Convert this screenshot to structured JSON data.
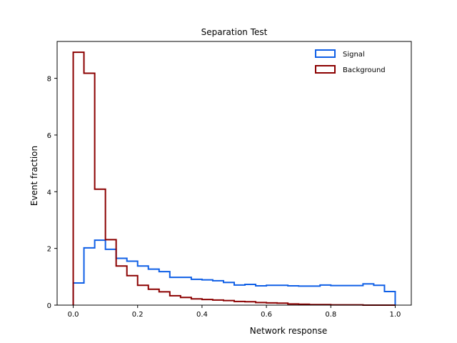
{
  "chart_data": {
    "type": "histogram-step",
    "title": "Separation Test",
    "xlabel": "Network response",
    "ylabel": "Event fraction",
    "xlim": [
      -0.05,
      1.05
    ],
    "ylim": [
      0,
      9.3
    ],
    "xticks": [
      0.0,
      0.2,
      0.4,
      0.6,
      0.8,
      1.0
    ],
    "xtick_labels": [
      "0.0",
      "0.2",
      "0.4",
      "0.6",
      "0.8",
      "1.0"
    ],
    "yticks": [
      0,
      2,
      4,
      6,
      8
    ],
    "ytick_labels": [
      "0",
      "2",
      "4",
      "6",
      "8"
    ],
    "grid": false,
    "legend_position": "top-right",
    "bin_edges": [
      0,
      0.0333,
      0.0667,
      0.1,
      0.1333,
      0.1667,
      0.2,
      0.2333,
      0.2667,
      0.3,
      0.3333,
      0.3667,
      0.4,
      0.4333,
      0.4667,
      0.5,
      0.5333,
      0.5667,
      0.6,
      0.6333,
      0.6667,
      0.7,
      0.7333,
      0.7667,
      0.8,
      0.8333,
      0.8667,
      0.9,
      0.9333,
      0.9667,
      1.0
    ],
    "series": [
      {
        "name": "Signal",
        "color": "#0f5fe6",
        "values": [
          0.78,
          2.02,
          2.29,
          1.97,
          1.65,
          1.55,
          1.38,
          1.27,
          1.18,
          0.98,
          0.98,
          0.91,
          0.89,
          0.86,
          0.8,
          0.71,
          0.73,
          0.68,
          0.7,
          0.7,
          0.68,
          0.67,
          0.67,
          0.71,
          0.69,
          0.69,
          0.69,
          0.75,
          0.7,
          0.48
        ]
      },
      {
        "name": "Background",
        "color": "#8b0000",
        "values": [
          8.92,
          8.18,
          4.09,
          2.31,
          1.38,
          1.04,
          0.7,
          0.56,
          0.47,
          0.33,
          0.27,
          0.22,
          0.2,
          0.18,
          0.16,
          0.13,
          0.12,
          0.09,
          0.08,
          0.07,
          0.04,
          0.03,
          0.02,
          0.02,
          0.01,
          0.01,
          0.01,
          0.0,
          0.0,
          0.0
        ]
      }
    ]
  }
}
